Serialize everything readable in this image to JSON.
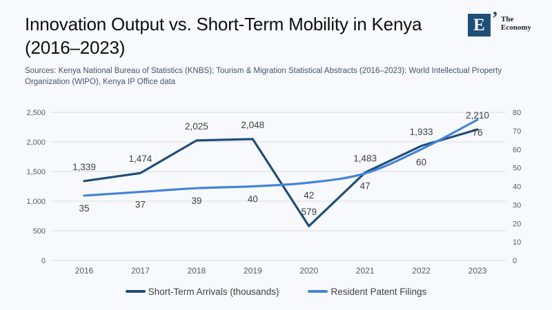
{
  "header": {
    "title": "Innovation Output vs. Short-Term Mobility in Kenya (2016–2023)",
    "sources": "Sources: Kenya National Bureau of Statistics (KNBS); Tourism & Migration Statistical Abstracts (2016–2023); World Intellectual Property Organization (WIPO), Kenya IP Office data",
    "logo": {
      "mark": "E",
      "quote": "’",
      "brand_line1": "The",
      "brand_line2": "Economy",
      "color": "#1f4e79"
    }
  },
  "chart_data": {
    "type": "line",
    "x": [
      "2016",
      "2017",
      "2018",
      "2019",
      "2020",
      "2021",
      "2022",
      "2023"
    ],
    "series": [
      {
        "name": "Short-Term Arrivals (thousands)",
        "axis": "left",
        "color": "#1f4e79",
        "smooth": false,
        "label_side": "above",
        "values": [
          1339,
          1474,
          2025,
          2048,
          579,
          1483,
          1933,
          2210
        ],
        "point_labels": [
          "1,339",
          "1,474",
          "2,025",
          "2,048",
          "579",
          "1,483",
          "1,933",
          "2,210"
        ]
      },
      {
        "name": "Resident Patent Filings",
        "axis": "right",
        "color": "#4284d9",
        "smooth": true,
        "label_side": "below",
        "values": [
          35,
          37,
          39,
          40,
          42,
          47,
          60,
          76
        ],
        "point_labels": [
          "35",
          "37",
          "39",
          "40",
          "42",
          "47",
          "60",
          "76"
        ]
      }
    ],
    "left_axis": {
      "min": 0,
      "max": 2500,
      "ticks": [
        "0",
        "500",
        "1,000",
        "1,500",
        "2,000",
        "2,500"
      ]
    },
    "right_axis": {
      "min": 0,
      "max": 80,
      "ticks": [
        "0",
        "10",
        "20",
        "30",
        "40",
        "50",
        "60",
        "70",
        "80"
      ]
    },
    "grid": true,
    "legend_position": "bottom",
    "colors": {
      "grid_line": "#d8dbe2",
      "tick_text": "#595959",
      "data_label_text": "#3f3f3f"
    }
  }
}
